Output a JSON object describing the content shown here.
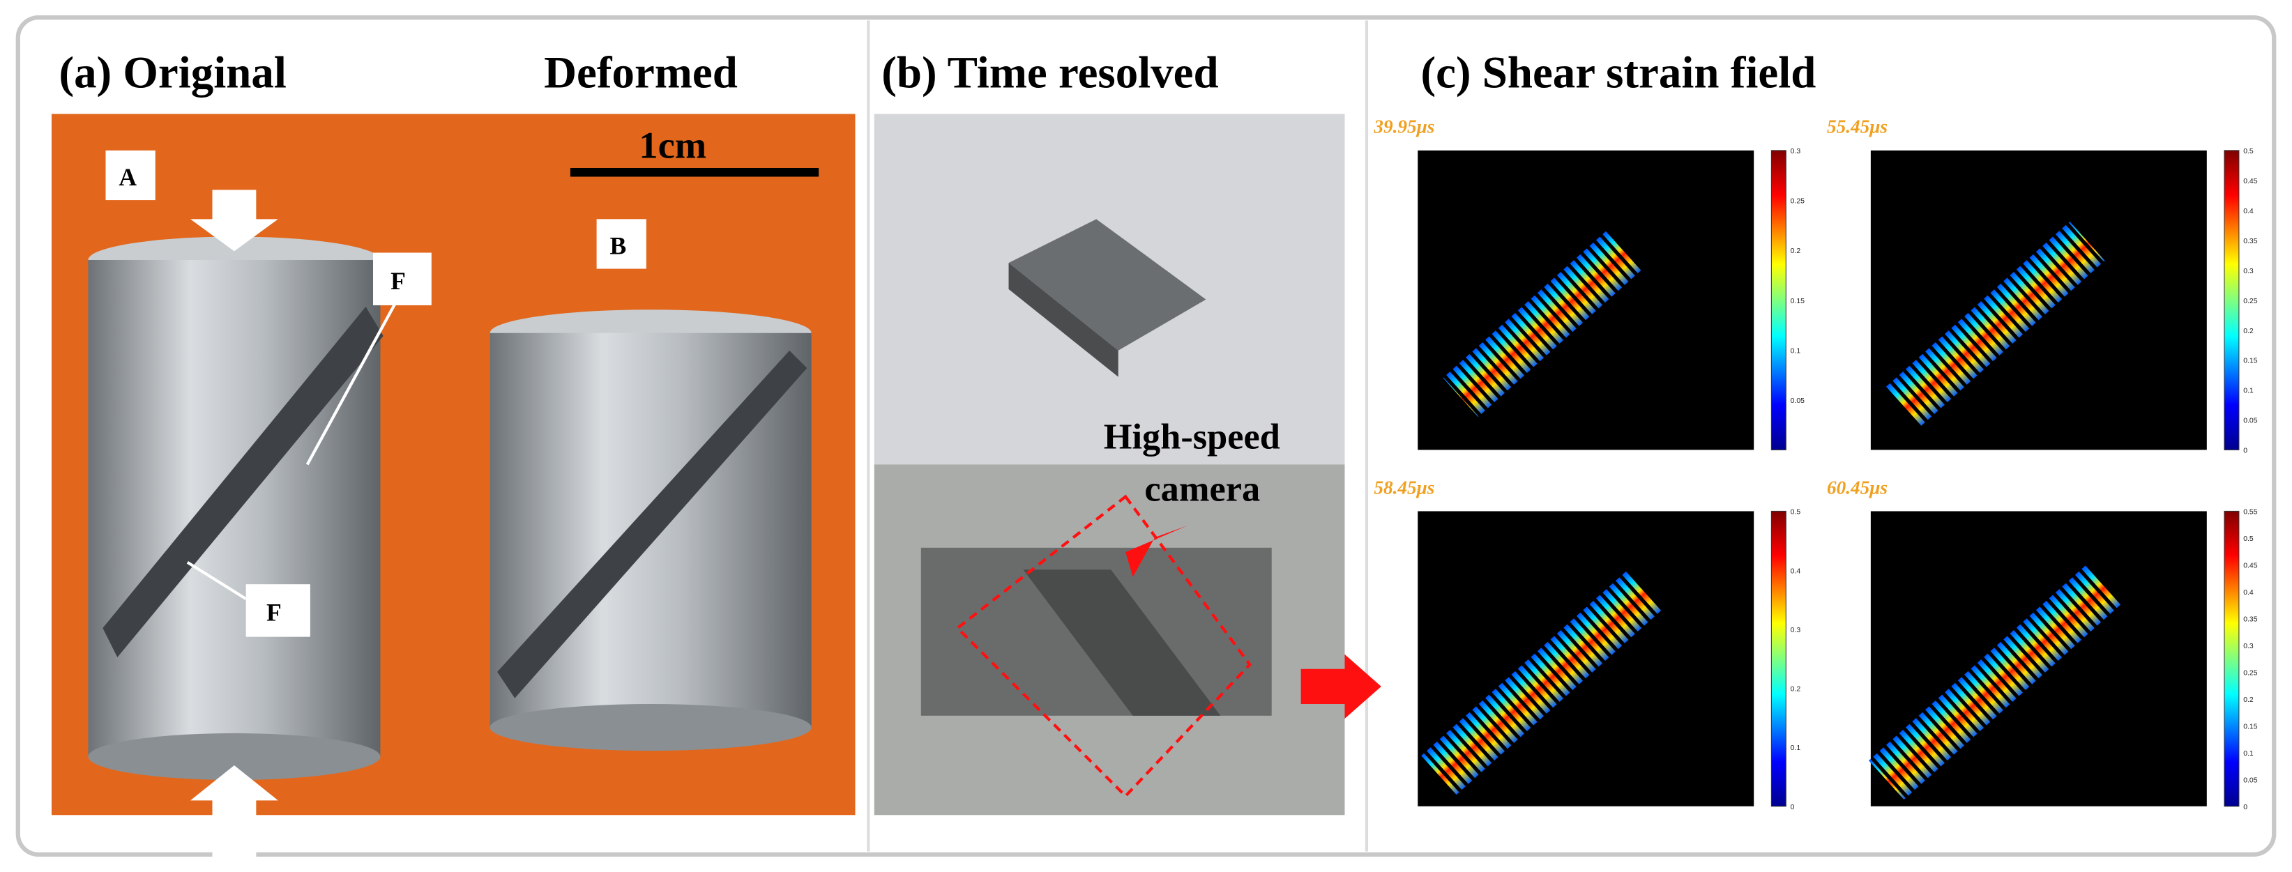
{
  "panel_a": {
    "title": "(a) Original",
    "title_right": "Deformed",
    "scale_bar": "1cm",
    "markers": [
      "A",
      "B",
      "F",
      "F"
    ]
  },
  "panel_b": {
    "title": "(b) Time resolved",
    "annotation": [
      "High-speed",
      "camera"
    ]
  },
  "panel_c": {
    "title": "(c) Shear strain field",
    "frames": [
      {
        "time": "39.95μs",
        "colorbar": [
          0.3,
          0.25,
          0.2,
          0.15,
          0.1,
          0.05
        ]
      },
      {
        "time": "55.45μs",
        "colorbar": [
          0.5,
          0.45,
          0.4,
          0.35,
          0.3,
          0.25,
          0.2,
          0.15,
          0.1,
          0.05,
          0
        ]
      },
      {
        "time": "58.45μs",
        "colorbar": [
          0.5,
          0.4,
          0.3,
          0.2,
          0.1,
          0
        ]
      },
      {
        "time": "60.45μs",
        "colorbar": [
          0.55,
          0.5,
          0.45,
          0.4,
          0.35,
          0.3,
          0.25,
          0.2,
          0.15,
          0.1,
          0.05,
          0
        ]
      }
    ]
  }
}
